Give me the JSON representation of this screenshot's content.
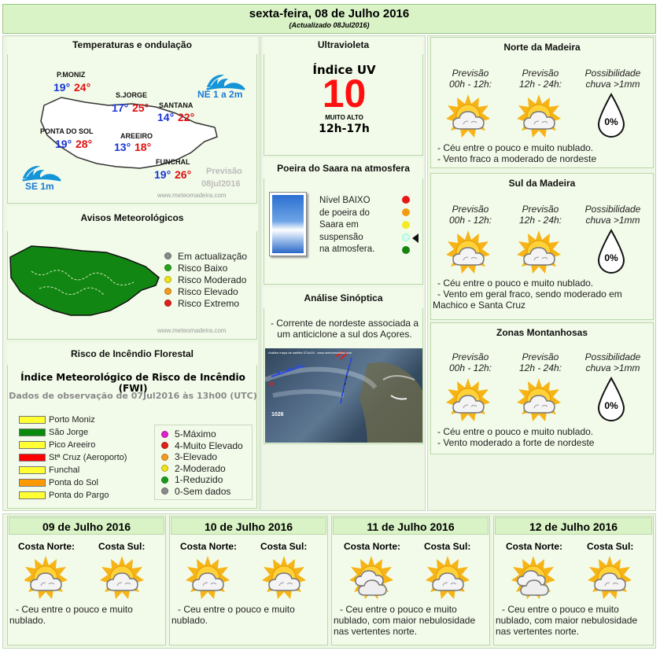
{
  "header": {
    "title": "sexta-feira, 08 de Julho 2016",
    "subtitle": "(Actualizado 08Jul2016)"
  },
  "temps": {
    "heading": "Temperaturas e ondulação",
    "places": [
      {
        "name": "P.MONIZ",
        "min": "19°",
        "max": "24°"
      },
      {
        "name": "S.JORGE",
        "min": "17°",
        "max": "25°"
      },
      {
        "name": "SANTANA",
        "min": "14°",
        "max": "22°"
      },
      {
        "name": "PONTA DO SOL",
        "min": "19°",
        "max": "28°"
      },
      {
        "name": "AREEIRO",
        "min": "13°",
        "max": "18°"
      },
      {
        "name": "FUNCHAL",
        "min": "19°",
        "max": "26°"
      }
    ],
    "wave_ne": "NE 1 a 2m",
    "wave_se": "SE 1m",
    "previsao": "Previsão",
    "previsao_date": "08jul2016",
    "site": "www.meteomadeira.com"
  },
  "warnings": {
    "heading": "Avisos Meteorológicos",
    "legend": [
      {
        "label": "Em actualização",
        "color": "#8a8a8a"
      },
      {
        "label": "Risco Baixo",
        "color": "#27a41b"
      },
      {
        "label": "Risco Moderado",
        "color": "#f2e21a"
      },
      {
        "label": "Risco Elevado",
        "color": "#f59b1c"
      },
      {
        "label": "Risco Extremo",
        "color": "#e3201b"
      }
    ],
    "site": "www.meteomadeira.com"
  },
  "fire": {
    "heading": "Risco de Incêndio Florestal",
    "title": "Índice Meteorológico de Risco de Incêndio (FWI)",
    "obs": "Dados de observação de 07Jul2016 às 13h00 (UTC)",
    "places": [
      {
        "label": "Porto Moniz",
        "color": "#ffff33"
      },
      {
        "label": "São Jorge",
        "color": "#0a8a0a"
      },
      {
        "label": "Pico Areeiro",
        "color": "#ffff33"
      },
      {
        "label": "Stª Cruz (Aeroporto)",
        "color": "#ff0000"
      },
      {
        "label": "Funchal",
        "color": "#ffff33"
      },
      {
        "label": "Ponta do Sol",
        "color": "#ff9900"
      },
      {
        "label": "Ponta do Pargo",
        "color": "#ffff33"
      }
    ],
    "scale": [
      {
        "label": "5-Máximo",
        "color": "#e020d0"
      },
      {
        "label": "4-Muito Elevado",
        "color": "#e3201b"
      },
      {
        "label": "3-Elevado",
        "color": "#f59b1c"
      },
      {
        "label": "2-Moderado",
        "color": "#f2e21a"
      },
      {
        "label": "1-Reduzido",
        "color": "#1a9a1a"
      },
      {
        "label": "0-Sem dados",
        "color": "#8a8a8a"
      }
    ]
  },
  "uv": {
    "heading": "Ultravioleta",
    "label": "Índice UV",
    "value": "10",
    "level": "MUITO ALTO",
    "hours": "12h-17h"
  },
  "dust": {
    "heading": "Poeira do Saara na atmosfera",
    "lines": [
      "Nível BAIXO",
      "de poeira do",
      "Saara em",
      "suspensão",
      "na atmosfera."
    ]
  },
  "synoptic": {
    "heading": "Análise Sinóptica",
    "text": "- Corrente de nordeste associada a um anticiclone a sul dos Açores.",
    "map_caption": "Análise mapa de satélite 07Jul16 - www.meteomadeira.com",
    "pressure": "1026"
  },
  "regions": [
    {
      "heading": "Norte da Madeira",
      "c1": [
        "Previsão",
        "00h - 12h:"
      ],
      "c2": [
        "Previsão",
        "12h - 24h:"
      ],
      "c3": [
        "Possibilidade",
        "chuva >1mm"
      ],
      "rain": "0%",
      "lines": [
        "- Céu entre o pouco e muito nublado.",
        "- Vento fraco a moderado de nordeste"
      ]
    },
    {
      "heading": "Sul da Madeira",
      "c1": [
        "Previsão",
        "00h - 12h:"
      ],
      "c2": [
        "Previsão",
        "12h - 24h:"
      ],
      "c3": [
        "Possibilidade",
        "chuva >1mm"
      ],
      "rain": "0%",
      "lines": [
        "- Céu entre o pouco e muito nublado.",
        "- Vento em geral fraco, sendo moderado em",
        "Machico e Santa Cruz"
      ]
    },
    {
      "heading": "Zonas Montanhosas",
      "c1": [
        "Previsão",
        "00h - 12h:"
      ],
      "c2": [
        "Previsão",
        "12h - 24h:"
      ],
      "c3": [
        "Possibilidade",
        "chuva >1mm"
      ],
      "rain": "0%",
      "lines": [
        "- Céu entre o pouco e muito nublado.",
        "- Vento moderado a forte de nordeste"
      ]
    }
  ],
  "days": [
    {
      "date": "09 de Julho 2016",
      "north": "Costa Norte:",
      "south": "Costa Sul:",
      "lines": [
        "- Ceu entre o pouco e muito",
        "nublado."
      ]
    },
    {
      "date": "10 de Julho 2016",
      "north": "Costa Norte:",
      "south": "Costa Sul:",
      "lines": [
        "- Ceu entre o pouco e muito",
        "nublado."
      ]
    },
    {
      "date": "11 de Julho 2016",
      "north": "Costa Norte:",
      "south": "Costa Sul:",
      "lines": [
        "- Ceu entre o pouco e muito",
        "nublado, com maior nebulosidade",
        "nas vertentes norte."
      ]
    },
    {
      "date": "12 de Julho 2016",
      "north": "Costa Norte:",
      "south": "Costa Sul:",
      "lines": [
        "- Ceu entre o pouco e muito",
        "nublado, com maior nebulosidade",
        "nas vertentes norte."
      ]
    }
  ]
}
